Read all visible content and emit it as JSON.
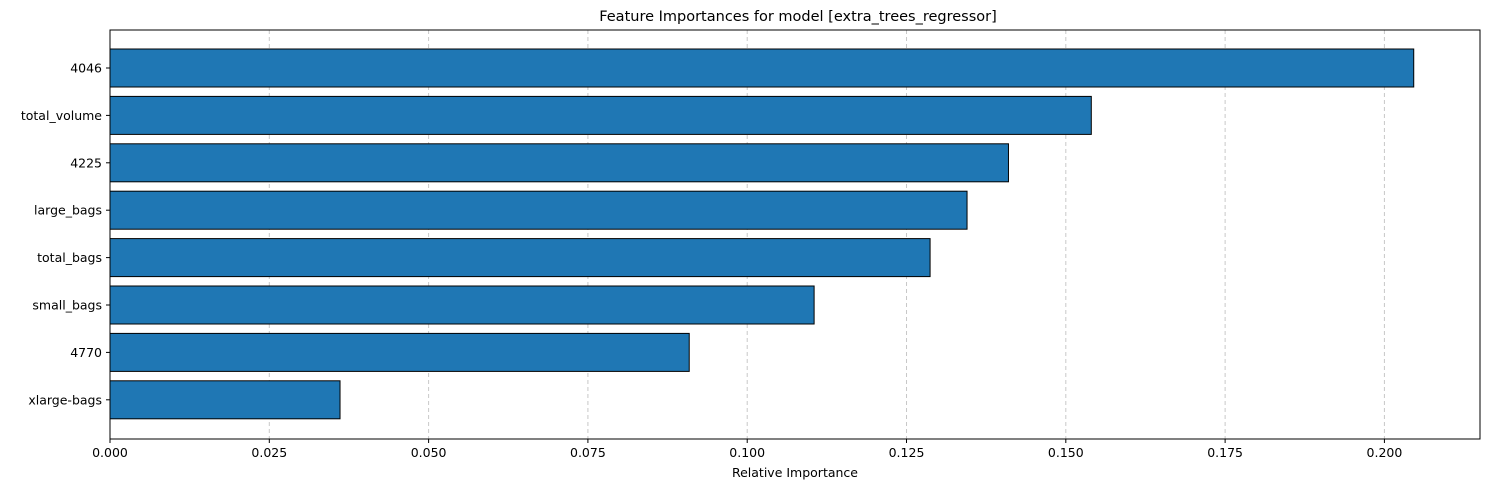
{
  "chart_data": {
    "type": "bar",
    "orientation": "horizontal",
    "title": "Feature Importances for model [extra_trees_regressor]",
    "xlabel": "Relative Importance",
    "ylabel": "",
    "categories": [
      "4046",
      "total_volume",
      "4225",
      "large_bags",
      "total_bags",
      "small_bags",
      "4770",
      "xlarge-bags"
    ],
    "values": [
      0.2046,
      0.154,
      0.141,
      0.1345,
      0.1287,
      0.1105,
      0.0909,
      0.0361
    ],
    "xlim": [
      0,
      0.215
    ],
    "xticks": [
      0.0,
      0.025,
      0.05,
      0.075,
      0.1,
      0.125,
      0.15,
      0.175,
      0.2
    ],
    "xtick_labels": [
      "0.000",
      "0.025",
      "0.050",
      "0.075",
      "0.100",
      "0.125",
      "0.150",
      "0.175",
      "0.200"
    ],
    "grid": "x-dashed",
    "colors": {
      "bar": "#1f77b4",
      "edge": "#000000",
      "grid": "#c8c8c8"
    }
  }
}
